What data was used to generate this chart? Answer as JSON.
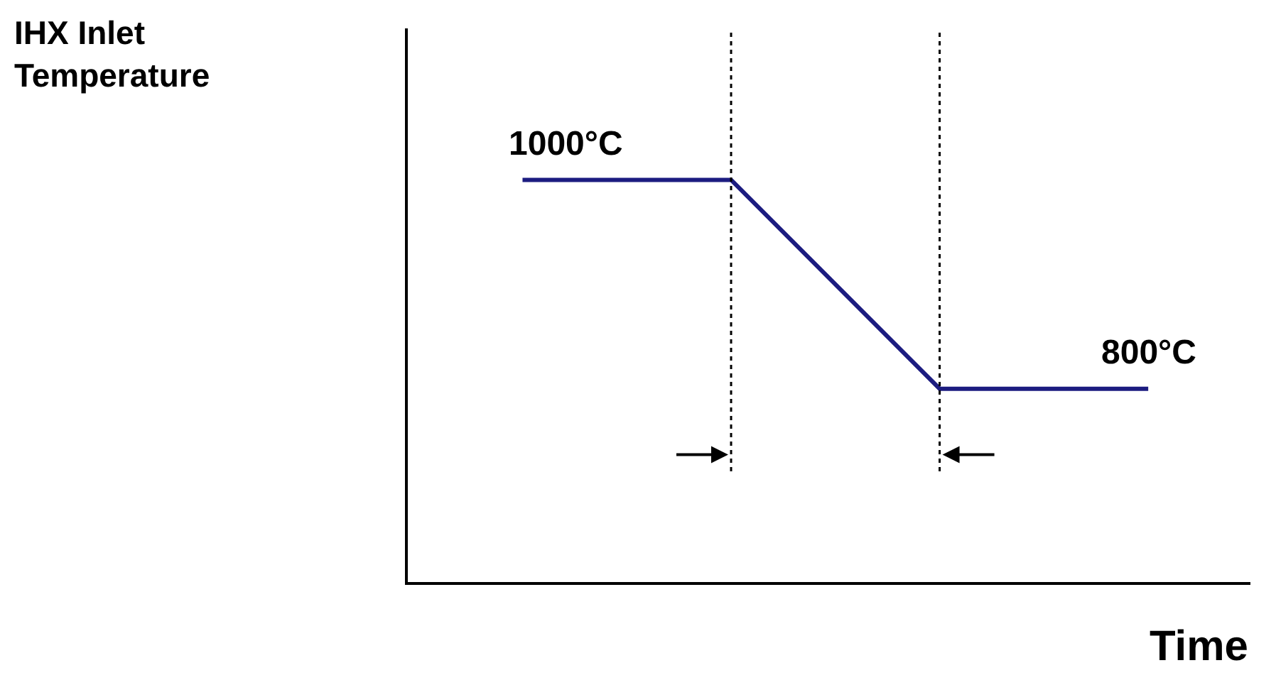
{
  "chart_data": {
    "type": "line",
    "xlabel": "Time",
    "annotations": [
      "IHX Inlet Temperature"
    ],
    "categories": [
      null,
      null,
      null,
      null
    ],
    "series": [
      {
        "color": "#1c1c80",
        "values": [
          1000,
          1000,
          800,
          800
        ],
        "value_labels": [
          "1000°C",
          null,
          null,
          "800°C"
        ]
      }
    ],
    "ylim": [
      615,
      1145
    ],
    "marker": "none",
    "line_style": "solid",
    "ref_lines": [
      {
        "axis": "x",
        "color": "#000000",
        "line_style": "dotted"
      },
      {
        "axis": "x",
        "color": "#000000",
        "line_style": "dotted"
      }
    ]
  }
}
